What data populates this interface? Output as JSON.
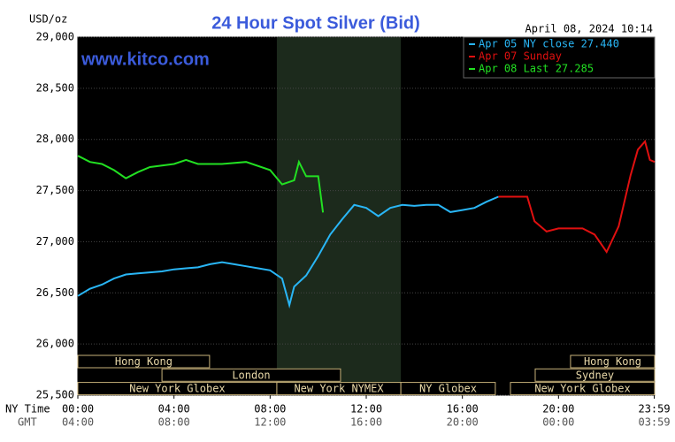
{
  "chart_data": {
    "type": "line",
    "title": "24 Hour Spot Silver (Bid)",
    "subtitle": "www.kitco.com",
    "timestamp": "April 08, 2024 10:14",
    "y_label": "USD/oz",
    "x_label": "NY Time",
    "x2_label": "GMT",
    "xlim": [
      0,
      24
    ],
    "xticks": [
      {
        "value": 0,
        "label": "00:00"
      },
      {
        "value": 4,
        "label": "04:00"
      },
      {
        "value": 8,
        "label": "08:00"
      },
      {
        "value": 12,
        "label": "12:00"
      },
      {
        "value": 16,
        "label": "16:00"
      },
      {
        "value": 20,
        "label": "20:00"
      },
      {
        "value": 23.983,
        "label": "23:59"
      }
    ],
    "x2ticks": [
      {
        "value": 0,
        "label": "04:00"
      },
      {
        "value": 4,
        "label": "08:00"
      },
      {
        "value": 8,
        "label": "12:00"
      },
      {
        "value": 12,
        "label": "16:00"
      },
      {
        "value": 16,
        "label": "20:00"
      },
      {
        "value": 20,
        "label": "00:00"
      },
      {
        "value": 23.983,
        "label": "03:59"
      }
    ],
    "ylim": [
      25500,
      29000
    ],
    "yticks": [
      {
        "value": 25500,
        "label": "25,500"
      },
      {
        "value": 26000,
        "label": "26,000"
      },
      {
        "value": 26500,
        "label": "26,500"
      },
      {
        "value": 27000,
        "label": "27,000"
      },
      {
        "value": 27500,
        "label": "27,500"
      },
      {
        "value": 28000,
        "label": "28,000"
      },
      {
        "value": 28500,
        "label": "28,500"
      },
      {
        "value": 29000,
        "label": "29,000"
      }
    ],
    "grid": true,
    "highlight": [
      8.28,
      13.44
    ],
    "sessions": [
      {
        "label": "Hong Kong",
        "start": 0,
        "end": 5.48
      },
      {
        "label": "London",
        "start": 3.5,
        "end": 10.93
      },
      {
        "label": "New York Globex",
        "start": 0,
        "end": 8.28
      },
      {
        "label": "New York NYMEX",
        "start": 8.28,
        "end": 13.44
      },
      {
        "label": "NY Globex",
        "start": 13.44,
        "end": 17.37
      },
      {
        "label": "Hong Kong",
        "start": 20.5,
        "end": 24
      },
      {
        "label": "Sydney",
        "start": 19.03,
        "end": 24
      },
      {
        "label": "New York Globex",
        "start": 18,
        "end": 24
      }
    ],
    "series": [
      {
        "name": "Apr 05 NY close 27.440",
        "color": "#29b6f6",
        "x": [
          0,
          0.5,
          1,
          1.5,
          2,
          2.5,
          3,
          3.5,
          4,
          4.5,
          5,
          5.5,
          6,
          6.5,
          7,
          7.5,
          8,
          8.5,
          8.8,
          9,
          9.5,
          10,
          10.5,
          11,
          11.5,
          12,
          12.5,
          13,
          13.5,
          14,
          14.5,
          15,
          15.5,
          16,
          16.5,
          17,
          17.5
        ],
        "values": [
          26470,
          26540,
          26580,
          26640,
          26680,
          26690,
          26700,
          26710,
          26730,
          26740,
          26750,
          26780,
          26800,
          26780,
          26760,
          26740,
          26720,
          26640,
          26380,
          26560,
          26670,
          26860,
          27070,
          27220,
          27360,
          27330,
          27250,
          27330,
          27360,
          27350,
          27360,
          27360,
          27290,
          27310,
          27330,
          27390,
          27440
        ]
      },
      {
        "name": "Apr 07 Sunday",
        "color": "#e01010",
        "x": [
          17.5,
          18.7,
          19,
          19.5,
          20,
          21,
          21.5,
          22,
          22.5,
          23,
          23.3,
          23.6,
          23.8,
          24
        ],
        "values": [
          27440,
          27440,
          27200,
          27100,
          27130,
          27130,
          27070,
          26900,
          27150,
          27650,
          27900,
          27980,
          27800,
          27780
        ]
      },
      {
        "name": "Apr 08 Last 27.285",
        "color": "#22e022",
        "x": [
          0,
          0.5,
          1,
          1.5,
          2,
          2.5,
          3,
          4,
          4.5,
          5,
          6,
          7,
          8,
          8.5,
          9,
          9.2,
          9.5,
          10,
          10.2
        ],
        "values": [
          27840,
          27780,
          27760,
          27700,
          27620,
          27680,
          27730,
          27760,
          27800,
          27760,
          27760,
          27780,
          27700,
          27560,
          27600,
          27780,
          27640,
          27640,
          27285
        ]
      }
    ]
  }
}
